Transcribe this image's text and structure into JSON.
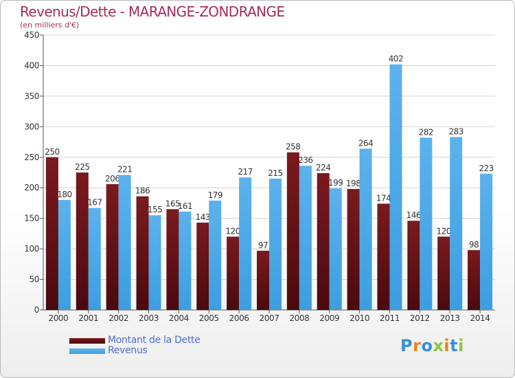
{
  "header": {
    "title": "Revenus/Dette - MARANGE-ZONDRANGE",
    "subtitle": "(en milliers d'€)"
  },
  "colors": {
    "dette": "#7a1a1e",
    "revenus": "#3d9ee0",
    "title": "#a42c5b",
    "legend_text": "#4f6fcf"
  },
  "legend": {
    "dette_label": "Montant de la Dette",
    "revenus_label": "Revenus"
  },
  "logo": {
    "text": "Proxiti"
  },
  "chart_data": {
    "type": "bar",
    "title": "Revenus/Dette - MARANGE-ZONDRANGE",
    "subtitle": "(en milliers d'€)",
    "categories": [
      "2000",
      "2001",
      "2002",
      "2003",
      "2004",
      "2005",
      "2006",
      "2007",
      "2008",
      "2009",
      "2010",
      "2011",
      "2012",
      "2013",
      "2014"
    ],
    "series": [
      {
        "name": "Montant de la Dette",
        "values": [
          250,
          225,
          206,
          186,
          165,
          143,
          120,
          97,
          258,
          224,
          198,
          174,
          146,
          120,
          98
        ]
      },
      {
        "name": "Revenus",
        "values": [
          180,
          167,
          221,
          155,
          161,
          179,
          217,
          215,
          236,
          199,
          264,
          402,
          282,
          283,
          223
        ]
      }
    ],
    "yticks": [
      0,
      50,
      100,
      150,
      200,
      250,
      300,
      350,
      400,
      450
    ],
    "ylim": [
      0,
      450
    ],
    "grid": true,
    "legend_position": "bottom-left"
  }
}
